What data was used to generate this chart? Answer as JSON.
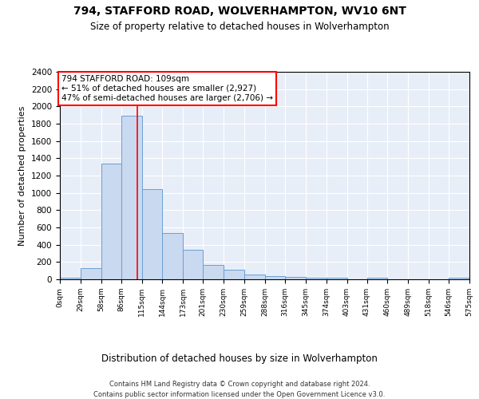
{
  "title1": "794, STAFFORD ROAD, WOLVERHAMPTON, WV10 6NT",
  "title2": "Size of property relative to detached houses in Wolverhampton",
  "xlabel": "Distribution of detached houses by size in Wolverhampton",
  "ylabel": "Number of detached properties",
  "bin_edges": [
    0,
    29,
    58,
    86,
    115,
    144,
    173,
    201,
    230,
    259,
    288,
    316,
    345,
    374,
    403,
    431,
    460,
    489,
    518,
    546,
    575
  ],
  "bin_labels": [
    "0sqm",
    "29sqm",
    "58sqm",
    "86sqm",
    "115sqm",
    "144sqm",
    "173sqm",
    "201sqm",
    "230sqm",
    "259sqm",
    "288sqm",
    "316sqm",
    "345sqm",
    "374sqm",
    "403sqm",
    "431sqm",
    "460sqm",
    "489sqm",
    "518sqm",
    "546sqm",
    "575sqm"
  ],
  "counts": [
    20,
    130,
    1340,
    1890,
    1040,
    540,
    340,
    170,
    110,
    55,
    35,
    30,
    20,
    15,
    3,
    20,
    3,
    3,
    3,
    20
  ],
  "bar_color": "#c9d9f0",
  "bar_edge_color": "#6b9fd4",
  "red_line_x": 109,
  "annotation_text": "794 STAFFORD ROAD: 109sqm\n← 51% of detached houses are smaller (2,927)\n47% of semi-detached houses are larger (2,706) →",
  "annotation_box_color": "white",
  "annotation_box_edge_color": "red",
  "footer1": "Contains HM Land Registry data © Crown copyright and database right 2024.",
  "footer2": "Contains public sector information licensed under the Open Government Licence v3.0.",
  "plot_background_color": "#e8eef8",
  "ylim": [
    0,
    2400
  ],
  "yticks": [
    0,
    200,
    400,
    600,
    800,
    1000,
    1200,
    1400,
    1600,
    1800,
    2000,
    2200,
    2400
  ]
}
